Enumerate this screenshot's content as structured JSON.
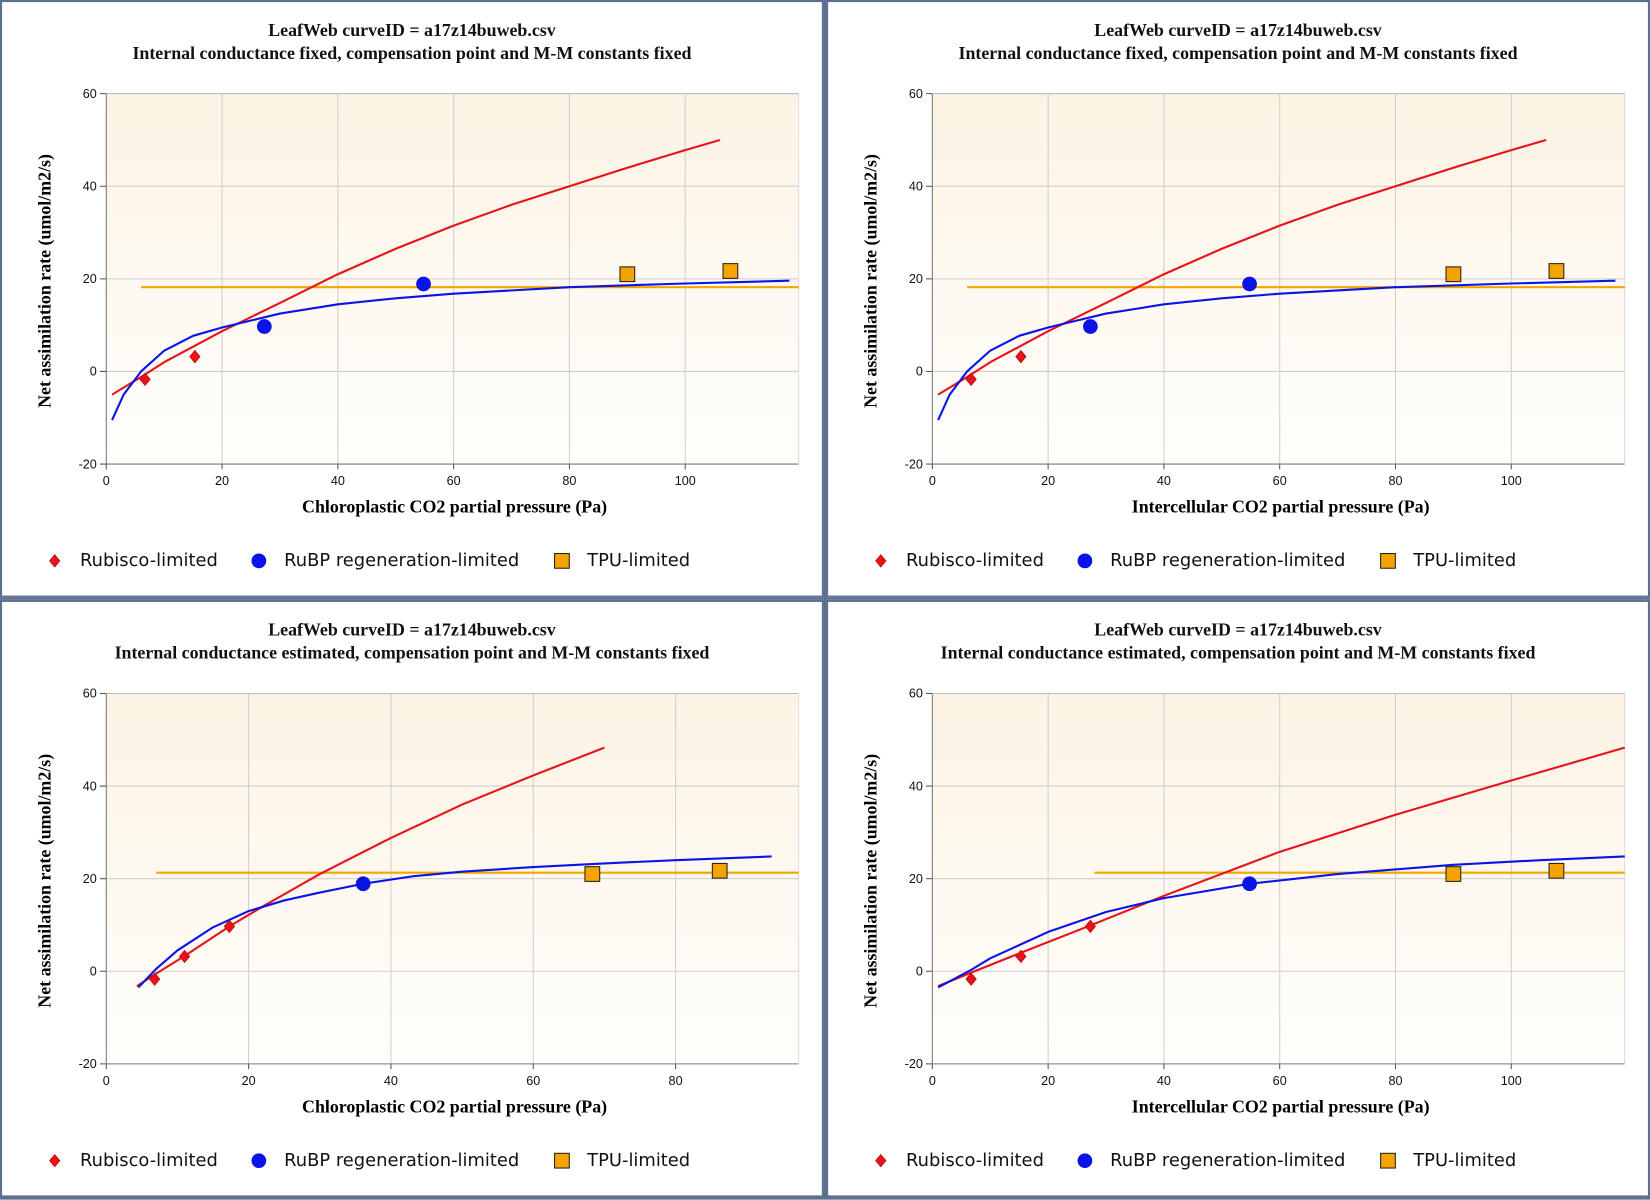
{
  "colors": {
    "rubisco": "#e8121b",
    "rubp": "#0a14e6",
    "tpu": "#f5a300",
    "grid": "#cfcfcf",
    "plot_bg_top": "#fcf3e3",
    "plot_bg_bottom": "#fffefc"
  },
  "legend": {
    "rubisco": "Rubisco-limited",
    "rubp": "RuBP regeneration-limited",
    "tpu": "TPU-limited"
  },
  "legend_icons": {
    "rubisco": "diamond",
    "rubp": "circle",
    "tpu": "square"
  },
  "chart_data": [
    {
      "type": "scatter",
      "title": "LeafWeb curveID = a17z14buweb.csv",
      "subtitle": "Internal conductance fixed, compensation point and M-M constants fixed",
      "xlabel": "Chloroplastic CO2 partial pressure (Pa)",
      "ylabel": "Net assimilation rate (umol/m2/s)",
      "xlim": [
        0,
        119.6
      ],
      "ylim": [
        -20,
        60
      ],
      "xticks": [
        0,
        20,
        40,
        60,
        80,
        100
      ],
      "yticks": [
        -20,
        0,
        20,
        40,
        60
      ],
      "grid": true,
      "legend_position": "bottom",
      "points": {
        "rubisco": [
          [
            6.7,
            -1.7
          ],
          [
            15.3,
            3.2
          ]
        ],
        "rubp": [
          [
            27.3,
            9.7
          ],
          [
            54.8,
            18.9
          ]
        ],
        "tpu": [
          [
            90,
            21
          ],
          [
            107.8,
            21.7
          ]
        ]
      },
      "curves": {
        "rubisco": [
          [
            1,
            -5
          ],
          [
            6,
            -1.2
          ],
          [
            10,
            2
          ],
          [
            20,
            8.7
          ],
          [
            30,
            14.8
          ],
          [
            40,
            21
          ],
          [
            50,
            26.5
          ],
          [
            60,
            31.5
          ],
          [
            70,
            36
          ],
          [
            80,
            40
          ],
          [
            90,
            44
          ],
          [
            100,
            47.8
          ],
          [
            106,
            50
          ]
        ],
        "rubp": [
          [
            1,
            -10.5
          ],
          [
            3,
            -5
          ],
          [
            6,
            0
          ],
          [
            10,
            4.5
          ],
          [
            15,
            7.7
          ],
          [
            20,
            9.5
          ],
          [
            25,
            11
          ],
          [
            30,
            12.5
          ],
          [
            40,
            14.5
          ],
          [
            50,
            15.8
          ],
          [
            60,
            16.8
          ],
          [
            80,
            18.2
          ],
          [
            100,
            19
          ],
          [
            118,
            19.6
          ]
        ],
        "tpu": [
          [
            6,
            18.2
          ],
          [
            119.6,
            18.2
          ]
        ]
      }
    },
    {
      "type": "scatter",
      "title": "LeafWeb curveID = a17z14buweb.csv",
      "subtitle": "Internal conductance fixed, compensation point and M-M constants fixed",
      "xlabel": "Intercellular CO2 partial pressure (Pa)",
      "ylabel": "Net assimilation rate (umol/m2/s)",
      "xlim": [
        0,
        119.6
      ],
      "ylim": [
        -20,
        60
      ],
      "xticks": [
        0,
        20,
        40,
        60,
        80,
        100
      ],
      "yticks": [
        -20,
        0,
        20,
        40,
        60
      ],
      "grid": true,
      "legend_position": "bottom",
      "points": {
        "rubisco": [
          [
            6.7,
            -1.7
          ],
          [
            15.3,
            3.2
          ]
        ],
        "rubp": [
          [
            27.3,
            9.7
          ],
          [
            54.8,
            18.9
          ]
        ],
        "tpu": [
          [
            90,
            21
          ],
          [
            107.8,
            21.7
          ]
        ]
      },
      "curves": {
        "rubisco": [
          [
            1,
            -5
          ],
          [
            6,
            -1.2
          ],
          [
            10,
            2
          ],
          [
            20,
            8.7
          ],
          [
            30,
            14.8
          ],
          [
            40,
            21
          ],
          [
            50,
            26.5
          ],
          [
            60,
            31.5
          ],
          [
            70,
            36
          ],
          [
            80,
            40
          ],
          [
            90,
            44
          ],
          [
            100,
            47.8
          ],
          [
            106,
            50
          ]
        ],
        "rubp": [
          [
            1,
            -10.5
          ],
          [
            3,
            -5
          ],
          [
            6,
            0
          ],
          [
            10,
            4.5
          ],
          [
            15,
            7.7
          ],
          [
            20,
            9.5
          ],
          [
            25,
            11
          ],
          [
            30,
            12.5
          ],
          [
            40,
            14.5
          ],
          [
            50,
            15.8
          ],
          [
            60,
            16.8
          ],
          [
            80,
            18.2
          ],
          [
            100,
            19
          ],
          [
            118,
            19.6
          ]
        ],
        "tpu": [
          [
            6,
            18.2
          ],
          [
            119.6,
            18.2
          ]
        ]
      }
    },
    {
      "type": "scatter",
      "title": "LeafWeb curveID = a17z14buweb.csv",
      "subtitle": "Internal conductance estimated, compensation point and M-M constants fixed",
      "xlabel": "Chloroplastic CO2 partial pressure (Pa)",
      "ylabel": "Net assimilation rate (umol/m2/s)",
      "xlim": [
        0,
        97.3
      ],
      "ylim": [
        -20,
        60
      ],
      "xticks": [
        0,
        20,
        40,
        60,
        80
      ],
      "yticks": [
        -20,
        0,
        20,
        40,
        60
      ],
      "grid": true,
      "legend_position": "bottom",
      "points": {
        "rubisco": [
          [
            6.8,
            -1.7
          ],
          [
            11,
            3.2
          ],
          [
            17.3,
            9.7
          ]
        ],
        "rubp": [
          [
            36.1,
            18.9
          ]
        ],
        "tpu": [
          [
            68.3,
            21
          ],
          [
            86.2,
            21.7
          ]
        ]
      },
      "curves": {
        "rubisco": [
          [
            4.3,
            -3.2
          ],
          [
            7,
            -0.5
          ],
          [
            11,
            3.3
          ],
          [
            17.3,
            9.7
          ],
          [
            22,
            14
          ],
          [
            30,
            21
          ],
          [
            40,
            28.8
          ],
          [
            50,
            36
          ],
          [
            60,
            42.3
          ],
          [
            70,
            48.3
          ]
        ],
        "rubp": [
          [
            4.5,
            -3.5
          ],
          [
            7,
            0.5
          ],
          [
            10,
            4.5
          ],
          [
            15,
            9.5
          ],
          [
            20,
            13
          ],
          [
            25,
            15.3
          ],
          [
            30,
            17
          ],
          [
            36.1,
            18.9
          ],
          [
            43,
            20.5
          ],
          [
            50,
            21.5
          ],
          [
            60,
            22.5
          ],
          [
            70,
            23.3
          ],
          [
            80,
            24
          ],
          [
            93.5,
            24.8
          ]
        ],
        "tpu": [
          [
            7,
            21.3
          ],
          [
            97.3,
            21.3
          ]
        ]
      }
    },
    {
      "type": "scatter",
      "title": "LeafWeb curveID = a17z14buweb.csv",
      "subtitle": "Internal conductance estimated, compensation point and M-M constants fixed",
      "xlabel": "Intercellular CO2 partial pressure (Pa)",
      "ylabel": "Net assimilation rate (umol/m2/s)",
      "xlim": [
        0,
        119.6
      ],
      "ylim": [
        -20,
        60
      ],
      "xticks": [
        0,
        20,
        40,
        60,
        80,
        100
      ],
      "yticks": [
        -20,
        0,
        20,
        40,
        60
      ],
      "grid": true,
      "legend_position": "bottom",
      "points": {
        "rubisco": [
          [
            6.7,
            -1.7
          ],
          [
            15.3,
            3.2
          ],
          [
            27.3,
            9.7
          ]
        ],
        "rubp": [
          [
            54.8,
            18.9
          ]
        ],
        "tpu": [
          [
            90,
            21
          ],
          [
            107.8,
            21.7
          ]
        ]
      },
      "curves": {
        "rubisco": [
          [
            1,
            -3.2
          ],
          [
            6.7,
            -0.3
          ],
          [
            15.3,
            4
          ],
          [
            27.3,
            9.9
          ],
          [
            40,
            16.3
          ],
          [
            60,
            25.8
          ],
          [
            80,
            33.8
          ],
          [
            100,
            41.2
          ],
          [
            119.6,
            48.3
          ]
        ],
        "rubp": [
          [
            1,
            -3.5
          ],
          [
            6.7,
            0.3
          ],
          [
            10,
            2.8
          ],
          [
            20,
            8.5
          ],
          [
            30,
            12.8
          ],
          [
            40,
            15.8
          ],
          [
            54.8,
            18.9
          ],
          [
            70,
            21
          ],
          [
            90,
            23
          ],
          [
            105,
            24
          ],
          [
            119.6,
            24.8
          ]
        ],
        "tpu": [
          [
            28,
            21.3
          ],
          [
            119.6,
            21.3
          ]
        ]
      }
    }
  ]
}
